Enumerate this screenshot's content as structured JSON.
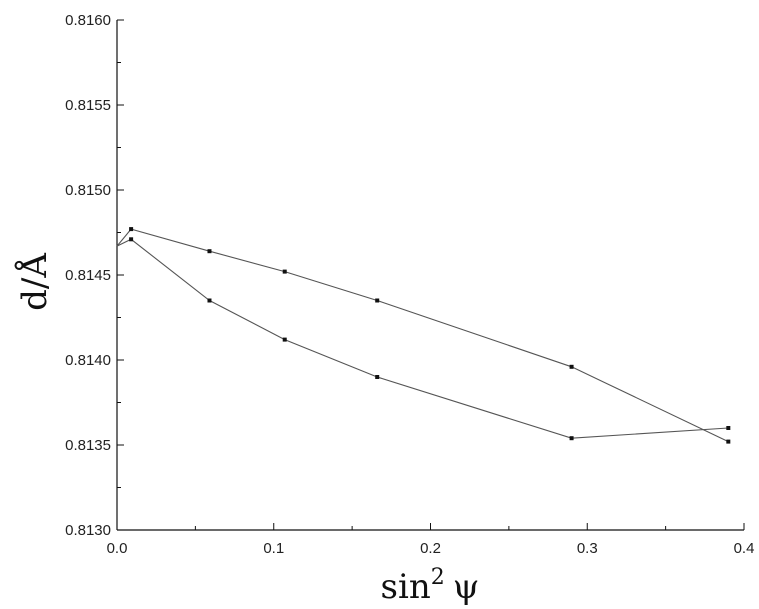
{
  "chart_data": {
    "type": "line",
    "xlabel": "sin",
    "xlabel_sup": "2",
    "xlabel_symbol": "ψ",
    "ylabel": "d/Å",
    "xlim": [
      0.0,
      0.4
    ],
    "ylim": [
      0.813,
      0.816
    ],
    "x_ticks": [
      "0.0",
      "0.1",
      "0.2",
      "0.3",
      "0.4"
    ],
    "y_ticks": [
      "0.8130",
      "0.8135",
      "0.8140",
      "0.8145",
      "0.8150",
      "0.8155",
      "0.8160"
    ],
    "grid": false,
    "legend": "none",
    "line_color": "#555555",
    "marker_color": "#111111",
    "series": [
      {
        "x": [
          0.0,
          0.009,
          0.059,
          0.107,
          0.166,
          0.29,
          0.39
        ],
        "y": [
          0.81467,
          0.81477,
          0.81464,
          0.81452,
          0.81435,
          0.81396,
          0.81352
        ]
      },
      {
        "x": [
          0.0,
          0.009,
          0.059,
          0.107,
          0.166,
          0.29,
          0.39
        ],
        "y": [
          0.81467,
          0.81471,
          0.81435,
          0.81412,
          0.8139,
          0.81354,
          0.8136
        ]
      }
    ]
  }
}
